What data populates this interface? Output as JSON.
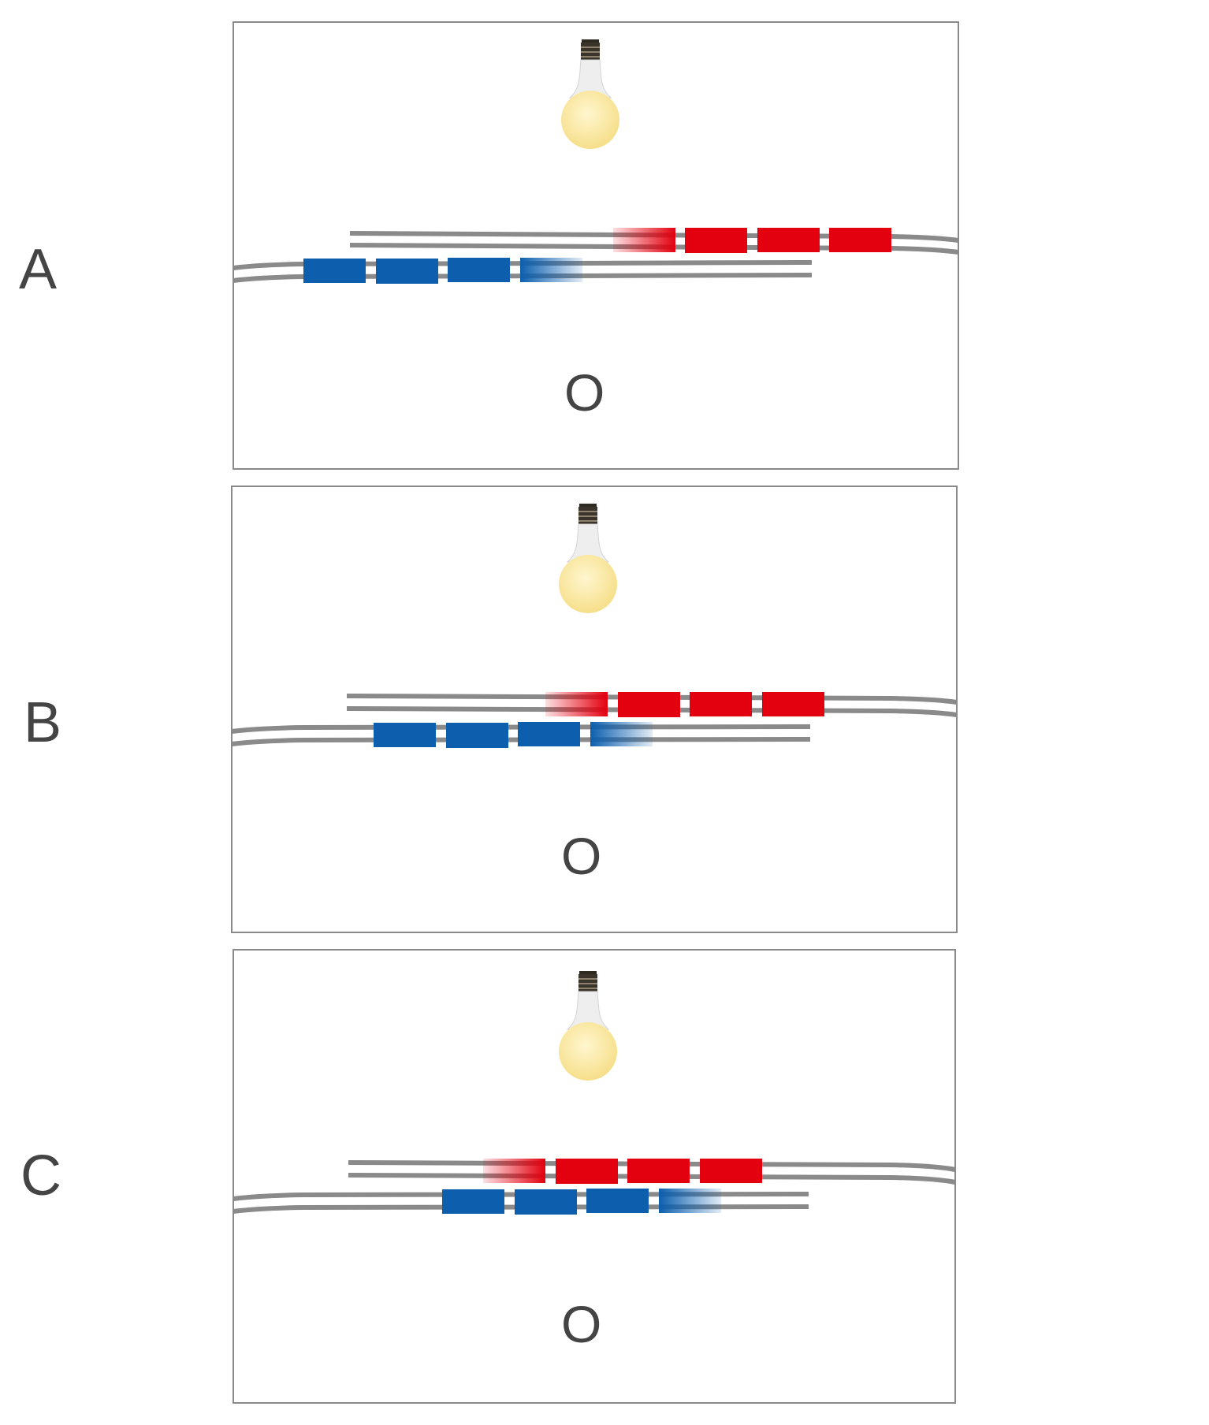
{
  "colors": {
    "panel_border": "#8a8a8a",
    "track": "#8a8a8a",
    "train_red": "#e3000f",
    "train_blue": "#0d5fae",
    "bulb_glass": "#fbe9a3",
    "bulb_base": "#2f2a22",
    "letter": "#444444"
  },
  "panels": [
    {
      "label": "A",
      "observer_label": "O",
      "icon": "light-bulb",
      "upper_train": {
        "color": "red",
        "cars": 4,
        "faded_end": "left"
      },
      "lower_train": {
        "color": "blue",
        "cars": 4,
        "faded_end": "right"
      }
    },
    {
      "label": "B",
      "observer_label": "O",
      "icon": "light-bulb",
      "upper_train": {
        "color": "red",
        "cars": 4,
        "faded_end": "left"
      },
      "lower_train": {
        "color": "blue",
        "cars": 4,
        "faded_end": "right"
      }
    },
    {
      "label": "C",
      "observer_label": "O",
      "icon": "light-bulb",
      "upper_train": {
        "color": "red",
        "cars": 4,
        "faded_end": "left"
      },
      "lower_train": {
        "color": "blue",
        "cars": 4,
        "faded_end": "right"
      }
    }
  ]
}
